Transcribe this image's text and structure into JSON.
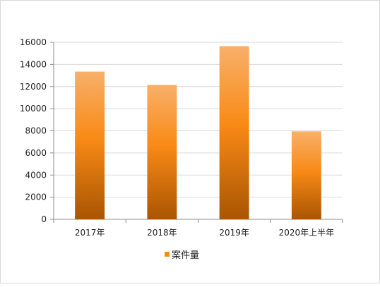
{
  "chart_data": {
    "type": "bar",
    "categories": [
      "2017年",
      "2018年",
      "2019年",
      "2020年上半年"
    ],
    "series": [
      {
        "name": "案件量",
        "values": [
          13350,
          12150,
          15650,
          7950
        ]
      }
    ],
    "ylim": [
      0,
      16000
    ],
    "yticks": [
      0,
      2000,
      4000,
      6000,
      8000,
      10000,
      12000,
      14000,
      16000
    ],
    "grid": true,
    "legend_position": "bottom",
    "colors": {
      "bar_top": "#f8b06a",
      "bar_mid": "#f98a16",
      "bar_bottom": "#a95502",
      "legend_swatch": "#f98a16",
      "grid": "#d9d9d9",
      "axis": "#8c8c8c"
    }
  }
}
